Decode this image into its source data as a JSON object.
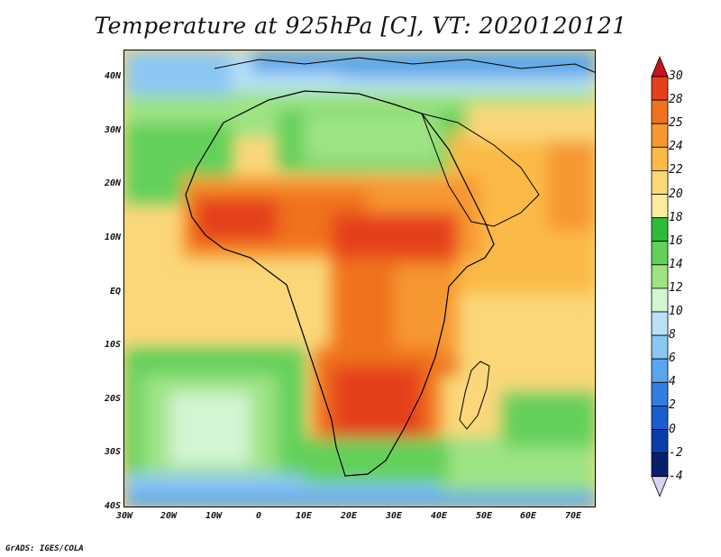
{
  "title": "Temperature at 925hPa [C], VT: 2020120121",
  "credit": "GrADS: IGES/COLA",
  "map": {
    "lon_range": [
      -30,
      75
    ],
    "lat_range": [
      -40,
      45
    ],
    "lat_ticks": [
      "40N",
      "30N",
      "20N",
      "10N",
      "EQ",
      "10S",
      "20S",
      "30S",
      "40S"
    ],
    "lon_ticks": [
      "30W",
      "20W",
      "10W",
      "0",
      "10E",
      "20E",
      "30E",
      "40E",
      "50E",
      "60E",
      "70E"
    ]
  },
  "colorbar": {
    "labels": [
      "30",
      "28",
      "25",
      "24",
      "22",
      "20",
      "18",
      "16",
      "14",
      "12",
      "10",
      "8",
      "6",
      "4",
      "2",
      "0",
      "-2",
      "-4"
    ],
    "colors": [
      "#c6141e",
      "#e5401a",
      "#f0721e",
      "#f79730",
      "#fbba46",
      "#fbd77a",
      "#fbeb9d",
      "#2fba38",
      "#63d05a",
      "#9ee384",
      "#d3f5d3",
      "#b9e1f8",
      "#8cc7f3",
      "#5aa6ec",
      "#327fe2",
      "#1a5dd2",
      "#0c3cab",
      "#081f6e",
      "#d9d2f3"
    ]
  }
}
